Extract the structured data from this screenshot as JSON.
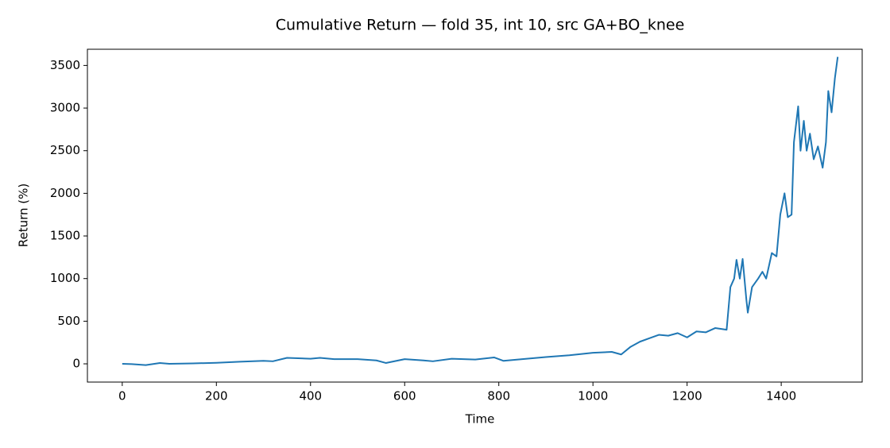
{
  "chart_data": {
    "type": "line",
    "title": "Cumulative Return — fold 35, int 10, src GA+BO_knee",
    "xlabel": "Time",
    "ylabel": "Return (%)",
    "color": "#1f77b4",
    "x": [
      0,
      20,
      50,
      80,
      100,
      150,
      200,
      250,
      300,
      320,
      350,
      400,
      420,
      450,
      500,
      540,
      560,
      600,
      640,
      660,
      700,
      750,
      790,
      810,
      850,
      900,
      950,
      1000,
      1040,
      1060,
      1080,
      1100,
      1120,
      1140,
      1160,
      1180,
      1200,
      1220,
      1240,
      1260,
      1284,
      1292,
      1300,
      1305,
      1312,
      1318,
      1326,
      1329,
      1338,
      1351,
      1360,
      1368,
      1380,
      1390,
      1398,
      1407,
      1414,
      1422,
      1427,
      1436,
      1441,
      1448,
      1454,
      1461,
      1469,
      1478,
      1488,
      1495,
      1500,
      1507,
      1514,
      1520
    ],
    "values": [
      0,
      -3,
      -15,
      10,
      0,
      5,
      12,
      25,
      35,
      30,
      70,
      60,
      70,
      55,
      55,
      40,
      10,
      55,
      40,
      30,
      60,
      50,
      75,
      35,
      55,
      80,
      100,
      130,
      140,
      110,
      200,
      260,
      300,
      340,
      330,
      360,
      310,
      380,
      370,
      420,
      400,
      900,
      1000,
      1220,
      1000,
      1230,
      750,
      600,
      900,
      1000,
      1080,
      1000,
      1300,
      1260,
      1750,
      2000,
      1720,
      1750,
      2600,
      3020,
      2500,
      2850,
      2500,
      2700,
      2400,
      2550,
      2300,
      2600,
      3200,
      2950,
      3350,
      3600
    ],
    "xlim": [
      -74,
      1572
    ],
    "ylim": [
      -214,
      3690
    ],
    "xticks": [
      0,
      200,
      400,
      600,
      800,
      1000,
      1200,
      1400
    ],
    "yticks": [
      0,
      500,
      1000,
      1500,
      2000,
      2500,
      3000,
      3500
    ]
  }
}
